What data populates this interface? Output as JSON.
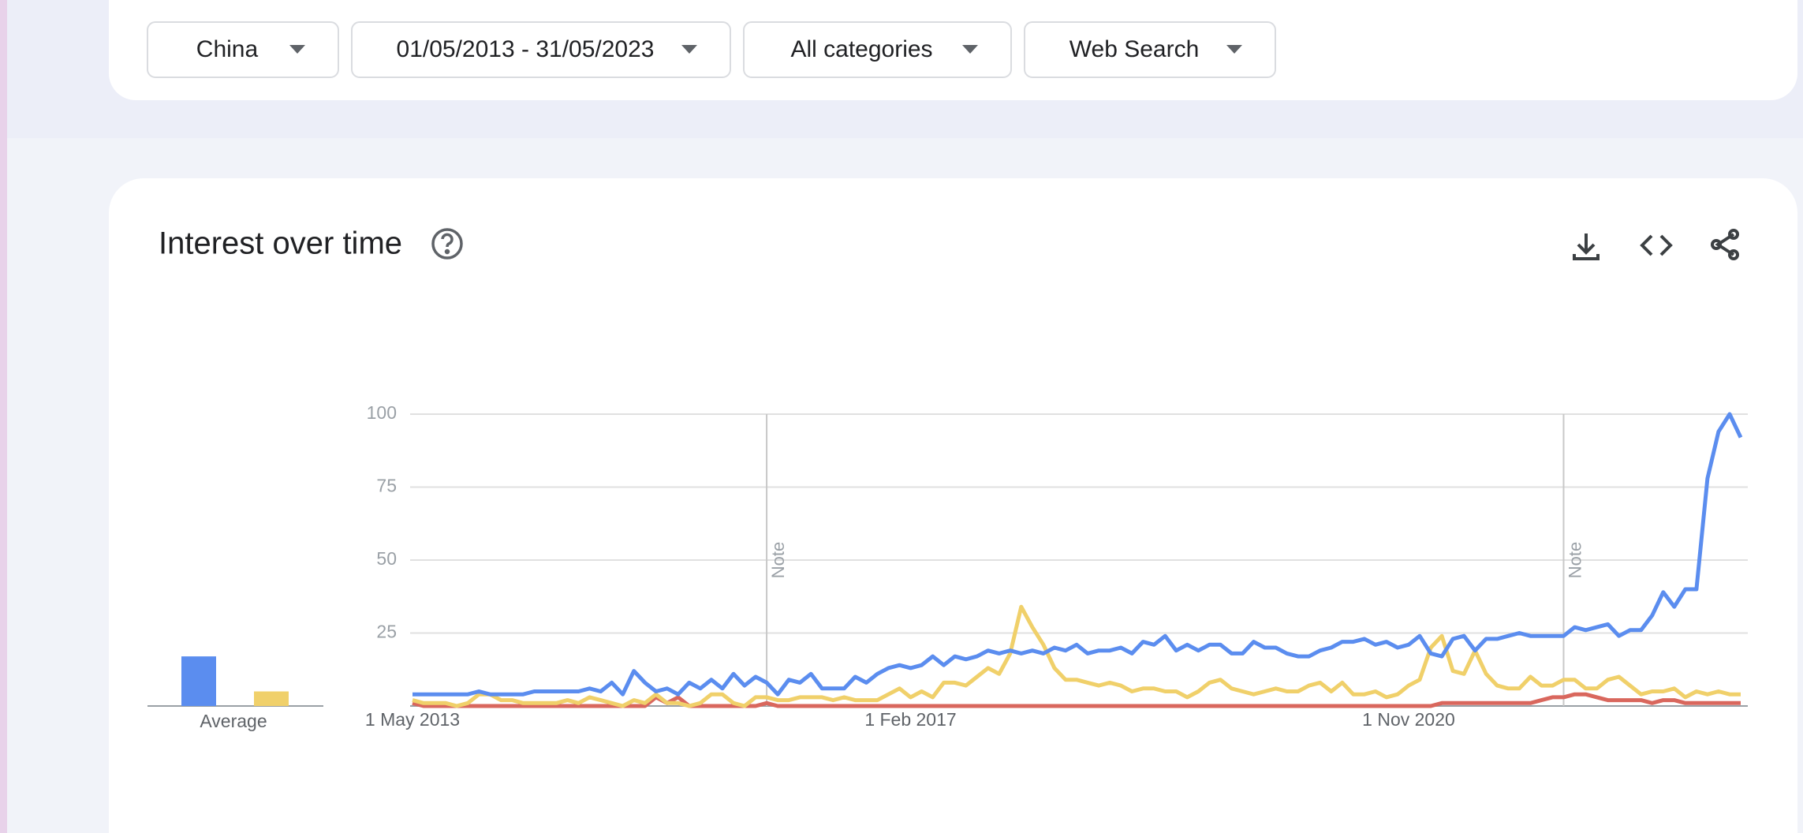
{
  "filters": [
    "China",
    "01/05/2013 - 31/05/2023",
    "All categories",
    "Web Search"
  ],
  "card_title": "Interest over time",
  "chart_data": {
    "type": "line",
    "categories": [
      "1 May 2013",
      null,
      null,
      null,
      null,
      null,
      null,
      null,
      null,
      null,
      null,
      null,
      null,
      null,
      null,
      null,
      null,
      null,
      null,
      null,
      null,
      null,
      null,
      null,
      null,
      null,
      null,
      null,
      null,
      null,
      null,
      null,
      null,
      null,
      null,
      null,
      null,
      null,
      null,
      null,
      null,
      null,
      null,
      null,
      null,
      "1 Feb 2017",
      null,
      null,
      null,
      null,
      null,
      null,
      null,
      null,
      null,
      null,
      null,
      null,
      null,
      null,
      null,
      null,
      null,
      null,
      null,
      null,
      null,
      null,
      null,
      null,
      null,
      null,
      null,
      null,
      null,
      null,
      null,
      null,
      null,
      null,
      null,
      null,
      null,
      null,
      null,
      null,
      null,
      null,
      null,
      null,
      "1 Nov 2020",
      null,
      null,
      null,
      null,
      null,
      null,
      null,
      null,
      null,
      null,
      null,
      null,
      null,
      null,
      null,
      null,
      null,
      null,
      null,
      null,
      null,
      null,
      null,
      null,
      null,
      null,
      null,
      null,
      null,
      null
    ],
    "series": [
      {
        "color": "#5b8def",
        "average": 17,
        "values": [
          4,
          4,
          4,
          4,
          4,
          4,
          5,
          4,
          4,
          4,
          4,
          5,
          5,
          5,
          5,
          5,
          6,
          5,
          8,
          4,
          12,
          8,
          5,
          6,
          4,
          8,
          6,
          9,
          6,
          11,
          7,
          10,
          8,
          4,
          9,
          8,
          11,
          6,
          6,
          6,
          10,
          8,
          11,
          13,
          14,
          13,
          14,
          17,
          14,
          17,
          16,
          17,
          19,
          18,
          19,
          18,
          19,
          18,
          20,
          19,
          21,
          18,
          19,
          19,
          20,
          18,
          22,
          21,
          24,
          19,
          21,
          19,
          21,
          21,
          18,
          18,
          22,
          20,
          20,
          18,
          17,
          17,
          19,
          20,
          22,
          22,
          23,
          21,
          22,
          20,
          21,
          24,
          18,
          17,
          23,
          24,
          19,
          23,
          23,
          24,
          25,
          24,
          24,
          24,
          24,
          27,
          26,
          27,
          28,
          24,
          26,
          26,
          31,
          39,
          34,
          40,
          40,
          78,
          94,
          100,
          92
        ]
      },
      {
        "color": "#f0d06a",
        "average": 5,
        "values": [
          2,
          1,
          1,
          1,
          0,
          1,
          4,
          4,
          2,
          2,
          1,
          1,
          1,
          1,
          2,
          1,
          3,
          2,
          1,
          0,
          2,
          1,
          4,
          1,
          1,
          0,
          1,
          4,
          4,
          1,
          0,
          3,
          3,
          2,
          2,
          3,
          3,
          3,
          2,
          3,
          2,
          2,
          2,
          4,
          6,
          3,
          5,
          3,
          8,
          8,
          7,
          10,
          13,
          11,
          18,
          34,
          27,
          21,
          13,
          9,
          9,
          8,
          7,
          8,
          7,
          5,
          6,
          6,
          5,
          5,
          3,
          5,
          8,
          9,
          6,
          5,
          4,
          5,
          6,
          5,
          5,
          7,
          8,
          5,
          8,
          4,
          4,
          5,
          3,
          4,
          7,
          9,
          20,
          24,
          12,
          11,
          19,
          11,
          7,
          6,
          6,
          10,
          7,
          7,
          9,
          9,
          6,
          6,
          9,
          10,
          7,
          4,
          5,
          5,
          6,
          3,
          5,
          4,
          5,
          4,
          4
        ]
      },
      {
        "color": "#d9675d",
        "average": 0,
        "values": [
          1,
          0,
          0,
          0,
          0,
          0,
          0,
          0,
          0,
          0,
          0,
          0,
          0,
          0,
          0,
          0,
          0,
          0,
          0,
          0,
          0,
          0,
          3,
          1,
          3,
          0,
          0,
          0,
          0,
          0,
          0,
          0,
          1,
          0,
          0,
          0,
          0,
          0,
          0,
          0,
          0,
          0,
          0,
          0,
          0,
          0,
          0,
          0,
          0,
          0,
          0,
          0,
          0,
          0,
          0,
          0,
          0,
          0,
          0,
          0,
          0,
          0,
          0,
          0,
          0,
          0,
          0,
          0,
          0,
          0,
          0,
          0,
          0,
          0,
          0,
          0,
          0,
          0,
          0,
          0,
          0,
          0,
          0,
          0,
          0,
          0,
          0,
          0,
          0,
          0,
          0,
          0,
          0,
          1,
          1,
          1,
          1,
          1,
          1,
          1,
          1,
          1,
          2,
          3,
          3,
          4,
          4,
          3,
          2,
          2,
          2,
          2,
          1,
          2,
          2,
          1,
          1,
          1,
          1,
          1,
          1
        ]
      }
    ],
    "average_label": "Average",
    "notes": [
      {
        "index": 32,
        "label": "Note"
      },
      {
        "index": 104,
        "label": "Note"
      }
    ],
    "ylim": [
      0,
      100
    ],
    "yticks": [
      25,
      50,
      75,
      100
    ],
    "grid": true
  }
}
